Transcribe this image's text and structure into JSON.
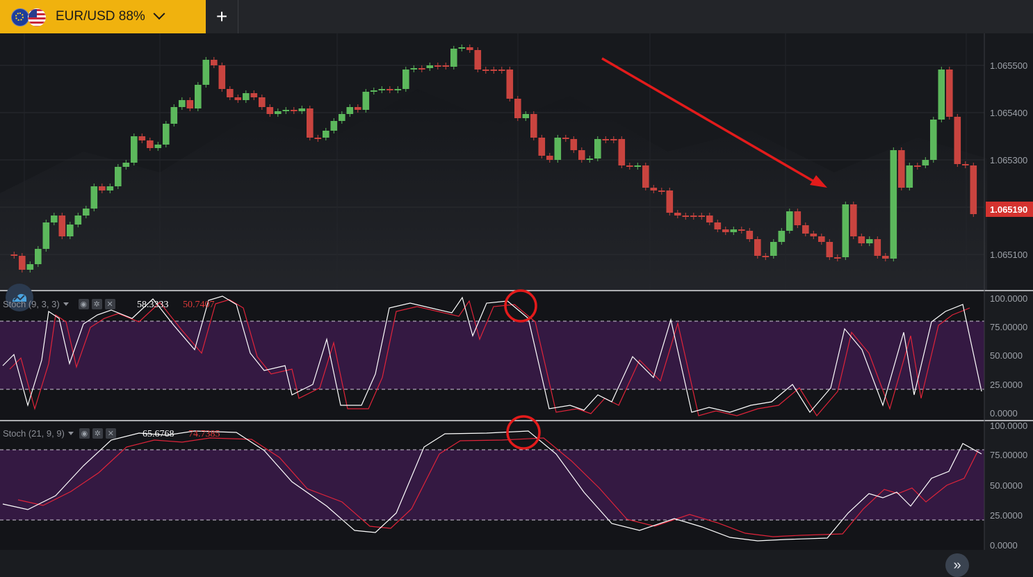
{
  "asset": {
    "label": "EUR/USD 88%",
    "flags": [
      "eu-flag-icon",
      "us-flag-icon"
    ]
  },
  "add_tab": {
    "label": "+"
  },
  "price_axis": {
    "ticks": [
      "1.065500",
      "1.065400",
      "1.065300",
      "1.065100"
    ],
    "current_price": "1.065190",
    "current_price_color": "#d4332f"
  },
  "stoch1": {
    "label": "Stoch (9, 3, 3)",
    "k_value": "58.3333",
    "d_value": "50.7407",
    "ticks": [
      "100.0000",
      "75.00000",
      "50.0000",
      "25.0000",
      "0.0000"
    ]
  },
  "stoch2": {
    "label": "Stoch (21, 9, 9)",
    "k_value": "65.6768",
    "d_value": "74.7385",
    "ticks": [
      "100.0000",
      "75.00000",
      "50.0000",
      "25.0000",
      "0.0000"
    ]
  },
  "colors": {
    "bull": "#5cb85c",
    "bear": "#c9443f",
    "k_line": "#ffffff",
    "d_line": "#e0243a",
    "arrow": "#e31b1b",
    "band": "#3b1a4a"
  },
  "icons": {
    "logo": "cloud-logo-icon",
    "scroll": "double-chevron-right-icon",
    "settings": "gear-icon",
    "visibility": "eye-icon",
    "close": "close-icon"
  }
}
